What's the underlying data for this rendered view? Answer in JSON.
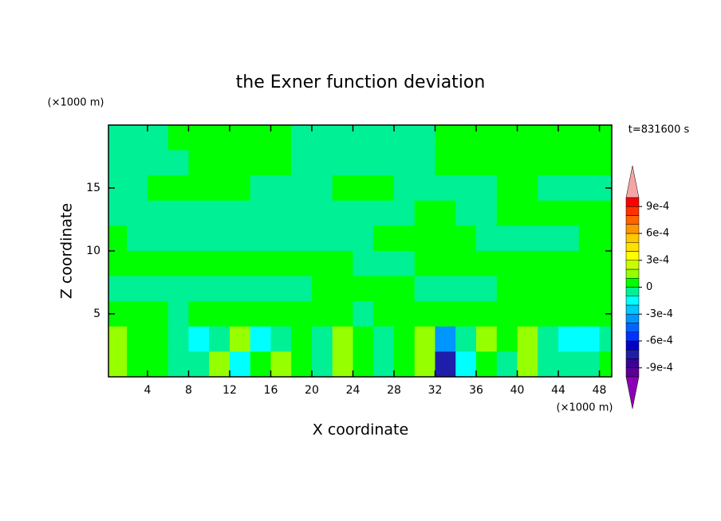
{
  "chart_data": {
    "type": "contour",
    "title": "the Exner function deviation",
    "x_label": "X coordinate",
    "y_label": "Z coordinate",
    "x_unit": "(×1000 m)",
    "y_unit": "(×1000 m)",
    "time_label": "t=831600 s",
    "xlim": [
      0.2,
      49.2
    ],
    "ylim": [
      0,
      20
    ],
    "xticks": [
      4,
      8,
      12,
      16,
      20,
      24,
      28,
      32,
      36,
      40,
      44,
      48
    ],
    "yticks": [
      5,
      10,
      15
    ],
    "cell_size": 2,
    "x": [
      1,
      3,
      5,
      7,
      9,
      11,
      13,
      15,
      17,
      19,
      21,
      23,
      25,
      27,
      29,
      31,
      33,
      35,
      37,
      39,
      41,
      43,
      45,
      47,
      49
    ],
    "y": [
      19,
      17,
      15,
      13,
      11,
      9,
      7,
      5,
      3,
      1
    ],
    "z": [
      [
        -5e-05,
        -5e-05,
        -5e-05,
        5e-05,
        5e-05,
        5e-05,
        5e-05,
        5e-05,
        5e-05,
        -5e-05,
        -5e-05,
        -5e-05,
        -5e-05,
        -5e-05,
        -5e-05,
        -5e-05,
        5e-05,
        5e-05,
        5e-05,
        5e-05,
        5e-05,
        5e-05,
        5e-05,
        5e-05,
        5e-05
      ],
      [
        -5e-05,
        -5e-05,
        -5e-05,
        -5e-05,
        5e-05,
        5e-05,
        5e-05,
        5e-05,
        5e-05,
        -5e-05,
        -5e-05,
        -5e-05,
        -5e-05,
        -5e-05,
        -5e-05,
        -5e-05,
        5e-05,
        5e-05,
        5e-05,
        5e-05,
        5e-05,
        5e-05,
        5e-05,
        5e-05,
        5e-05
      ],
      [
        -5e-05,
        -5e-05,
        5e-05,
        5e-05,
        5e-05,
        5e-05,
        5e-05,
        -5e-05,
        -5e-05,
        -5e-05,
        -5e-05,
        5e-05,
        5e-05,
        5e-05,
        -5e-05,
        -5e-05,
        -5e-05,
        -5e-05,
        -5e-05,
        5e-05,
        5e-05,
        -5e-05,
        -5e-05,
        -5e-05,
        -5e-05
      ],
      [
        -5e-05,
        -5e-05,
        -5e-05,
        -5e-05,
        -5e-05,
        -5e-05,
        -5e-05,
        -5e-05,
        -5e-05,
        -5e-05,
        -5e-05,
        -5e-05,
        -5e-05,
        -5e-05,
        -5e-05,
        5e-05,
        5e-05,
        -5e-05,
        -5e-05,
        5e-05,
        5e-05,
        5e-05,
        5e-05,
        5e-05,
        5e-05
      ],
      [
        5e-05,
        -5e-05,
        -5e-05,
        -5e-05,
        -5e-05,
        -5e-05,
        -5e-05,
        -5e-05,
        -5e-05,
        -5e-05,
        -5e-05,
        -5e-05,
        -5e-05,
        5e-05,
        5e-05,
        5e-05,
        5e-05,
        5e-05,
        -5e-05,
        -5e-05,
        -5e-05,
        -5e-05,
        -5e-05,
        5e-05,
        5e-05
      ],
      [
        5e-05,
        5e-05,
        5e-05,
        5e-05,
        5e-05,
        5e-05,
        5e-05,
        5e-05,
        5e-05,
        5e-05,
        5e-05,
        5e-05,
        -5e-05,
        -5e-05,
        -5e-05,
        5e-05,
        5e-05,
        5e-05,
        5e-05,
        5e-05,
        5e-05,
        5e-05,
        5e-05,
        5e-05,
        5e-05
      ],
      [
        -5e-05,
        -5e-05,
        -5e-05,
        -5e-05,
        -5e-05,
        -5e-05,
        -5e-05,
        -5e-05,
        -5e-05,
        -5e-05,
        5e-05,
        5e-05,
        5e-05,
        5e-05,
        5e-05,
        -5e-05,
        -5e-05,
        -5e-05,
        -5e-05,
        5e-05,
        5e-05,
        5e-05,
        5e-05,
        5e-05,
        5e-05
      ],
      [
        5e-05,
        5e-05,
        5e-05,
        -5e-05,
        5e-05,
        5e-05,
        5e-05,
        5e-05,
        5e-05,
        5e-05,
        5e-05,
        5e-05,
        -5e-05,
        5e-05,
        5e-05,
        5e-05,
        5e-05,
        5e-05,
        5e-05,
        5e-05,
        5e-05,
        5e-05,
        5e-05,
        5e-05,
        5e-05
      ],
      [
        0.00015,
        5e-05,
        5e-05,
        -5e-05,
        -0.00015,
        -5e-05,
        0.00015,
        -0.00015,
        -5e-05,
        5e-05,
        -5e-05,
        0.00015,
        5e-05,
        -5e-05,
        5e-05,
        0.00015,
        -0.00035,
        -5e-05,
        0.00015,
        5e-05,
        0.00015,
        -5e-05,
        -0.00015,
        -0.00015,
        -5e-05
      ],
      [
        0.00015,
        5e-05,
        5e-05,
        -5e-05,
        -5e-05,
        0.00015,
        -0.00015,
        5e-05,
        0.00015,
        5e-05,
        -5e-05,
        0.00015,
        5e-05,
        -5e-05,
        5e-05,
        0.00015,
        -0.00075,
        -0.00015,
        5e-05,
        -5e-05,
        0.00015,
        -5e-05,
        -5e-05,
        -5e-05,
        5e-05
      ]
    ],
    "levels": [
      -0.001,
      -0.0009,
      -0.0008,
      -0.0007,
      -0.0006,
      -0.0005,
      -0.0004,
      -0.0003,
      -0.0002,
      -0.0001,
      0,
      0.0001,
      0.0002,
      0.0003,
      0.0004,
      0.0005,
      0.0006,
      0.0007,
      0.0008,
      0.0009,
      0.001
    ],
    "colors": [
      "#8c00b4",
      "#5a0096",
      "#3c0096",
      "#1e1eaa",
      "#0000c8",
      "#0032ff",
      "#0064ff",
      "#0096ff",
      "#00c8ff",
      "#00ffff",
      "#00f096",
      "#00ff00",
      "#96ff00",
      "#c8ff00",
      "#ffff00",
      "#ffe100",
      "#ffc800",
      "#ff9600",
      "#ff6400",
      "#ff3200",
      "#ff0000",
      "#f4a6a6"
    ],
    "colorbar_ticks": [
      {
        "value": 0.0009,
        "label": "9e-4"
      },
      {
        "value": 0.0006,
        "label": "6e-4"
      },
      {
        "value": 0.0003,
        "label": "3e-4"
      },
      0,
      {
        "value": -0.0003,
        "label": "-3e-4"
      },
      {
        "value": -0.0006,
        "label": "-6e-4"
      },
      {
        "value": -0.0009,
        "label": "-9e-4"
      }
    ]
  }
}
